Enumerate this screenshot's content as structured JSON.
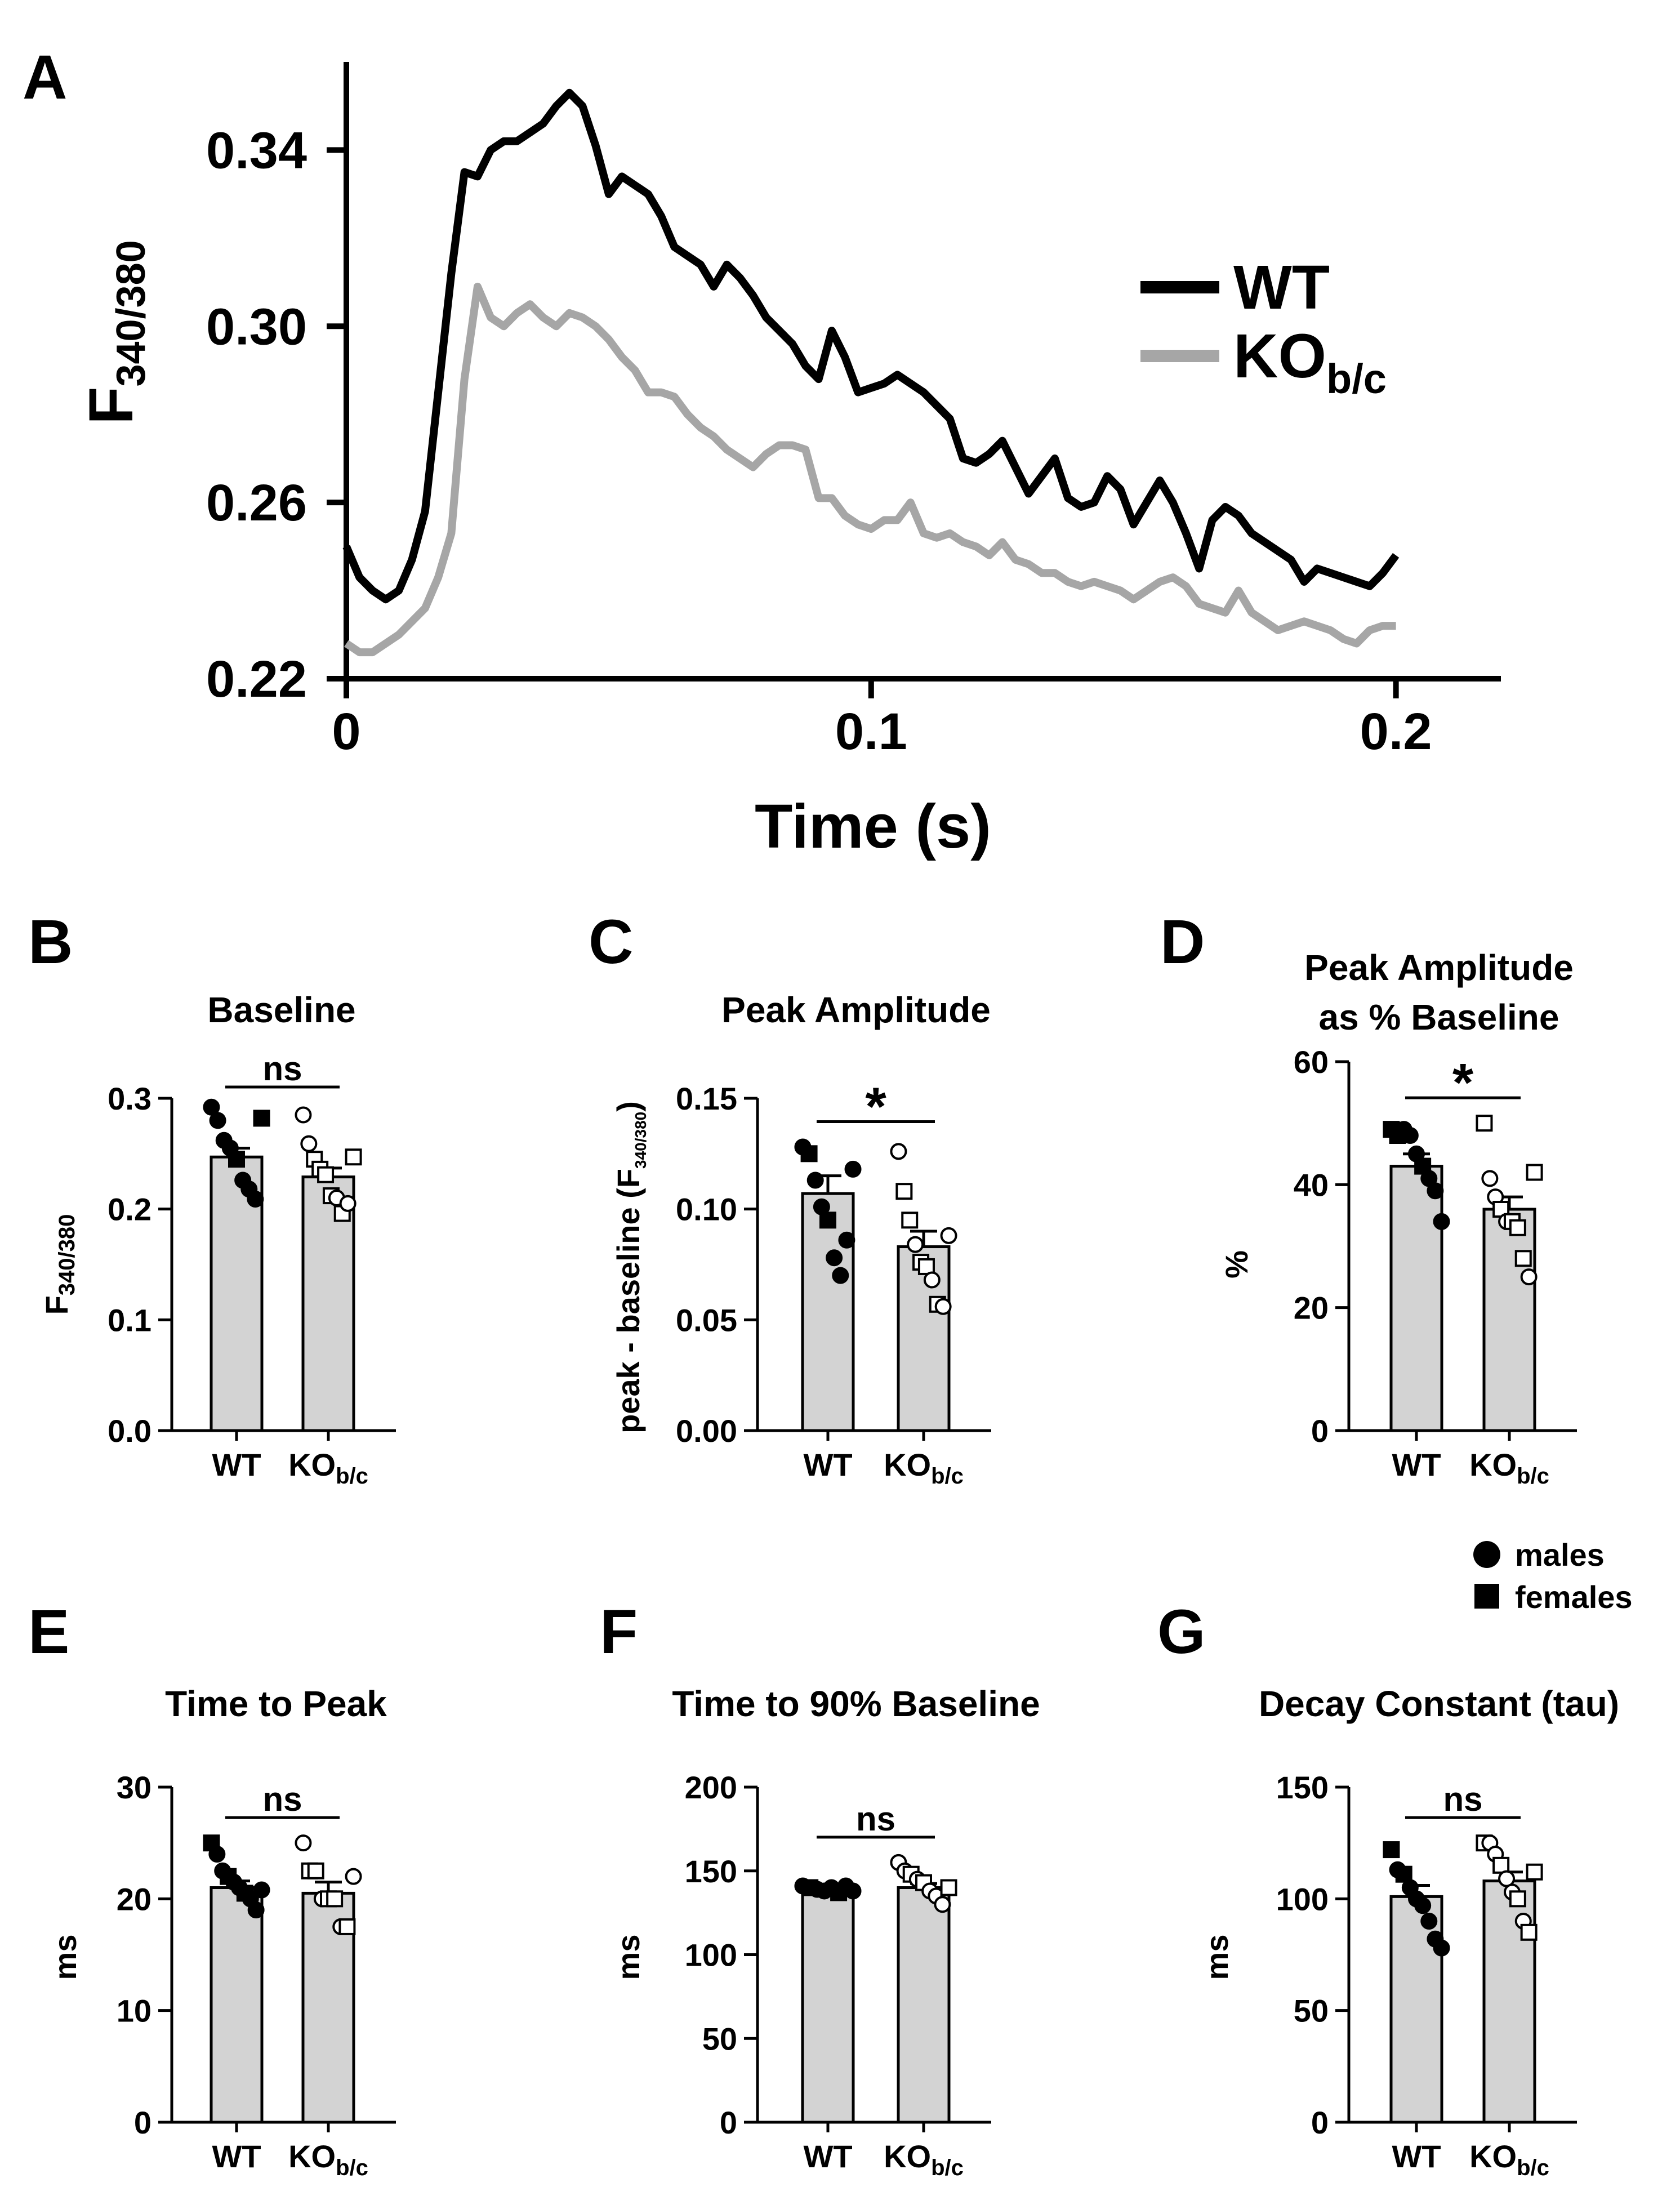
{
  "colors": {
    "wt": "#000000",
    "ko": "#a6a6a6",
    "bar_fill": "#d3d3d3"
  },
  "legend": {
    "wt": "WT",
    "ko_main": "KO",
    "ko_sub": "b/c"
  },
  "sex_legend": {
    "males": "males",
    "females": "females"
  },
  "chart_data": [
    {
      "panel": "A",
      "type": "line",
      "title": "",
      "xlabel": "Time (s)",
      "ylabel_main": "F",
      "ylabel_sub": "340/380",
      "xlim": [
        0,
        0.22
      ],
      "ylim": [
        0.22,
        0.36
      ],
      "xticks": [
        0,
        0.1,
        0.2
      ],
      "xtick_labels": [
        "0",
        "0.1",
        "0.2"
      ],
      "yticks": [
        0.22,
        0.26,
        0.3,
        0.34
      ],
      "ytick_labels": [
        "0.22",
        "0.26",
        "0.30",
        "0.34"
      ],
      "x": [
        0,
        0.0025,
        0.005,
        0.0075,
        0.01,
        0.0125,
        0.015,
        0.0175,
        0.02,
        0.0225,
        0.025,
        0.0275,
        0.03,
        0.0325,
        0.035,
        0.0375,
        0.04,
        0.0425,
        0.045,
        0.0475,
        0.05,
        0.0525,
        0.055,
        0.0575,
        0.06,
        0.0625,
        0.065,
        0.0675,
        0.07,
        0.0725,
        0.075,
        0.0775,
        0.08,
        0.0825,
        0.085,
        0.0875,
        0.09,
        0.0925,
        0.095,
        0.0975,
        0.1,
        0.1025,
        0.105,
        0.1075,
        0.11,
        0.1125,
        0.115,
        0.1175,
        0.12,
        0.1225,
        0.125,
        0.1275,
        0.13,
        0.1325,
        0.135,
        0.1375,
        0.14,
        0.1425,
        0.145,
        0.1475,
        0.15,
        0.1525,
        0.155,
        0.1575,
        0.16,
        0.1625,
        0.165,
        0.1675,
        0.17,
        0.1725,
        0.175,
        0.1775,
        0.18,
        0.1825,
        0.185,
        0.1875,
        0.19,
        0.1925,
        0.195,
        0.1975,
        0.2
      ],
      "series": [
        {
          "name": "WT",
          "values": [
            0.25,
            0.243,
            0.24,
            0.238,
            0.24,
            0.247,
            0.258,
            0.285,
            0.312,
            0.335,
            0.334,
            0.34,
            0.342,
            0.342,
            0.344,
            0.346,
            0.35,
            0.353,
            0.35,
            0.341,
            0.33,
            0.334,
            0.332,
            0.33,
            0.325,
            0.318,
            0.316,
            0.314,
            0.309,
            0.314,
            0.311,
            0.307,
            0.302,
            0.299,
            0.296,
            0.291,
            0.288,
            0.299,
            0.293,
            0.285,
            0.286,
            0.287,
            0.289,
            0.287,
            0.285,
            0.282,
            0.279,
            0.27,
            0.269,
            0.271,
            0.274,
            0.268,
            0.262,
            0.266,
            0.27,
            0.261,
            0.259,
            0.26,
            0.266,
            0.263,
            0.255,
            0.26,
            0.265,
            0.26,
            0.253,
            0.245,
            0.256,
            0.259,
            0.257,
            0.253,
            0.251,
            0.249,
            0.247,
            0.242,
            0.245,
            0.244,
            0.243,
            0.242,
            0.241,
            0.244,
            0.248
          ],
          "color": "#000000"
        },
        {
          "name": "KO b/c",
          "values": [
            0.228,
            0.226,
            0.226,
            0.228,
            0.23,
            0.233,
            0.236,
            0.243,
            0.253,
            0.288,
            0.309,
            0.302,
            0.3,
            0.303,
            0.305,
            0.302,
            0.3,
            0.303,
            0.302,
            0.3,
            0.297,
            0.293,
            0.29,
            0.285,
            0.285,
            0.284,
            0.28,
            0.277,
            0.275,
            0.272,
            0.27,
            0.268,
            0.271,
            0.273,
            0.273,
            0.272,
            0.261,
            0.261,
            0.257,
            0.255,
            0.254,
            0.256,
            0.256,
            0.26,
            0.253,
            0.252,
            0.253,
            0.251,
            0.25,
            0.248,
            0.251,
            0.247,
            0.246,
            0.244,
            0.244,
            0.242,
            0.241,
            0.242,
            0.241,
            0.24,
            0.238,
            0.24,
            0.242,
            0.243,
            0.241,
            0.237,
            0.236,
            0.235,
            0.24,
            0.235,
            0.233,
            0.231,
            0.232,
            0.233,
            0.232,
            0.231,
            0.229,
            0.228,
            0.231,
            0.232,
            0.232
          ],
          "color": "#a6a6a6"
        }
      ]
    },
    {
      "panel": "B",
      "type": "bar",
      "title": "Baseline",
      "ylabel": "F",
      "ylabel_sub": "340/380",
      "categories": [
        "WT",
        "KO"
      ],
      "category_subs": [
        "",
        "b/c"
      ],
      "ylim": [
        0,
        0.3
      ],
      "yticks": [
        0,
        0.1,
        0.2,
        0.3
      ],
      "ytick_labels": [
        "0.0",
        "0.1",
        "0.2",
        "0.3"
      ],
      "means": [
        0.247,
        0.229
      ],
      "sem": [
        0.008,
        0.008
      ],
      "significance": "ns",
      "points": [
        [
          {
            "v": 0.292,
            "sex": "m"
          },
          {
            "v": 0.28,
            "sex": "m"
          },
          {
            "v": 0.262,
            "sex": "m"
          },
          {
            "v": 0.255,
            "sex": "m"
          },
          {
            "v": 0.245,
            "sex": "f"
          },
          {
            "v": 0.226,
            "sex": "m"
          },
          {
            "v": 0.218,
            "sex": "m"
          },
          {
            "v": 0.209,
            "sex": "m"
          },
          {
            "v": 0.282,
            "sex": "f"
          }
        ],
        [
          {
            "v": 0.285,
            "sex": "m"
          },
          {
            "v": 0.259,
            "sex": "m"
          },
          {
            "v": 0.245,
            "sex": "f"
          },
          {
            "v": 0.236,
            "sex": "f"
          },
          {
            "v": 0.231,
            "sex": "f"
          },
          {
            "v": 0.212,
            "sex": "f"
          },
          {
            "v": 0.21,
            "sex": "m"
          },
          {
            "v": 0.196,
            "sex": "f"
          },
          {
            "v": 0.205,
            "sex": "m"
          },
          {
            "v": 0.247,
            "sex": "f"
          }
        ]
      ]
    },
    {
      "panel": "C",
      "type": "bar",
      "title": "Peak Amplitude",
      "ylabel": "peak - baseline (F",
      "ylabel_sub": "340/380",
      "ylabel_tail": ")",
      "categories": [
        "WT",
        "KO"
      ],
      "category_subs": [
        "",
        "b/c"
      ],
      "ylim": [
        0,
        0.15
      ],
      "yticks": [
        0,
        0.05,
        0.1,
        0.15
      ],
      "ytick_labels": [
        "0.00",
        "0.05",
        "0.10",
        "0.15"
      ],
      "means": [
        0.107,
        0.083
      ],
      "sem": [
        0.008,
        0.007
      ],
      "significance": "*",
      "points": [
        [
          {
            "v": 0.128,
            "sex": "m"
          },
          {
            "v": 0.125,
            "sex": "f"
          },
          {
            "v": 0.113,
            "sex": "m"
          },
          {
            "v": 0.101,
            "sex": "m"
          },
          {
            "v": 0.095,
            "sex": "f"
          },
          {
            "v": 0.078,
            "sex": "m"
          },
          {
            "v": 0.07,
            "sex": "m"
          },
          {
            "v": 0.086,
            "sex": "m"
          },
          {
            "v": 0.118,
            "sex": "m"
          }
        ],
        [
          {
            "v": 0.126,
            "sex": "m"
          },
          {
            "v": 0.108,
            "sex": "f"
          },
          {
            "v": 0.095,
            "sex": "f"
          },
          {
            "v": 0.084,
            "sex": "m"
          },
          {
            "v": 0.076,
            "sex": "f"
          },
          {
            "v": 0.074,
            "sex": "f"
          },
          {
            "v": 0.068,
            "sex": "m"
          },
          {
            "v": 0.057,
            "sex": "f"
          },
          {
            "v": 0.056,
            "sex": "m"
          },
          {
            "v": 0.088,
            "sex": "m"
          }
        ]
      ]
    },
    {
      "panel": "D",
      "type": "bar",
      "title_lines": [
        "Peak Amplitude",
        "as % Baseline"
      ],
      "ylabel": "%",
      "categories": [
        "WT",
        "KO"
      ],
      "category_subs": [
        "",
        "b/c"
      ],
      "ylim": [
        0,
        60
      ],
      "yticks": [
        0,
        20,
        40,
        60
      ],
      "ytick_labels": [
        "0",
        "20",
        "40",
        "60"
      ],
      "means": [
        43,
        36
      ],
      "sem": [
        2.0,
        2.0
      ],
      "significance": "*",
      "points": [
        [
          {
            "v": 49,
            "sex": "f"
          },
          {
            "v": 48,
            "sex": "f"
          },
          {
            "v": 49,
            "sex": "m"
          },
          {
            "v": 48,
            "sex": "m"
          },
          {
            "v": 45,
            "sex": "m"
          },
          {
            "v": 43,
            "sex": "f"
          },
          {
            "v": 41,
            "sex": "m"
          },
          {
            "v": 39,
            "sex": "m"
          },
          {
            "v": 34,
            "sex": "m"
          }
        ],
        [
          {
            "v": 50,
            "sex": "f"
          },
          {
            "v": 41,
            "sex": "m"
          },
          {
            "v": 38,
            "sex": "m"
          },
          {
            "v": 36,
            "sex": "f"
          },
          {
            "v": 34,
            "sex": "m"
          },
          {
            "v": 34,
            "sex": "f"
          },
          {
            "v": 33,
            "sex": "f"
          },
          {
            "v": 28,
            "sex": "f"
          },
          {
            "v": 25,
            "sex": "m"
          },
          {
            "v": 42,
            "sex": "f"
          }
        ]
      ]
    },
    {
      "panel": "E",
      "type": "bar",
      "title": "Time to Peak",
      "ylabel": "ms",
      "categories": [
        "WT",
        "KO"
      ],
      "category_subs": [
        "",
        "b/c"
      ],
      "ylim": [
        0,
        30
      ],
      "yticks": [
        0,
        10,
        20,
        30
      ],
      "ytick_labels": [
        "0",
        "10",
        "20",
        "30"
      ],
      "means": [
        21.0,
        20.5
      ],
      "sem": [
        0.6,
        1.0
      ],
      "significance": "ns",
      "points": [
        [
          {
            "v": 25,
            "sex": "f"
          },
          {
            "v": 24,
            "sex": "m"
          },
          {
            "v": 22.5,
            "sex": "m"
          },
          {
            "v": 22,
            "sex": "f"
          },
          {
            "v": 21.5,
            "sex": "m"
          },
          {
            "v": 21,
            "sex": "m"
          },
          {
            "v": 20.5,
            "sex": "f"
          },
          {
            "v": 20,
            "sex": "m"
          },
          {
            "v": 19,
            "sex": "m"
          },
          {
            "v": 20.8,
            "sex": "m"
          }
        ],
        [
          {
            "v": 25,
            "sex": "m"
          },
          {
            "v": 22.5,
            "sex": "f"
          },
          {
            "v": 22.5,
            "sex": "f"
          },
          {
            "v": 20,
            "sex": "m"
          },
          {
            "v": 20,
            "sex": "f"
          },
          {
            "v": 20,
            "sex": "f"
          },
          {
            "v": 17.5,
            "sex": "m"
          },
          {
            "v": 17.5,
            "sex": "f"
          },
          {
            "v": 22,
            "sex": "m"
          }
        ]
      ]
    },
    {
      "panel": "F",
      "type": "bar",
      "title": "Time to 90% Baseline",
      "ylabel": "ms",
      "categories": [
        "WT",
        "KO"
      ],
      "category_subs": [
        "",
        "b/c"
      ],
      "ylim": [
        0,
        200
      ],
      "yticks": [
        0,
        50,
        100,
        150,
        200
      ],
      "ytick_labels": [
        "0",
        "50",
        "100",
        "150",
        "200"
      ],
      "means": [
        139,
        140
      ],
      "sem": [
        1.0,
        2.5
      ],
      "significance": "ns",
      "points": [
        [
          {
            "v": 141,
            "sex": "m"
          },
          {
            "v": 140,
            "sex": "f"
          },
          {
            "v": 139,
            "sex": "m"
          },
          {
            "v": 138,
            "sex": "m"
          },
          {
            "v": 140,
            "sex": "m"
          },
          {
            "v": 137,
            "sex": "f"
          },
          {
            "v": 141,
            "sex": "m"
          },
          {
            "v": 138,
            "sex": "m"
          }
        ],
        [
          {
            "v": 155,
            "sex": "m"
          },
          {
            "v": 150,
            "sex": "m"
          },
          {
            "v": 148,
            "sex": "f"
          },
          {
            "v": 145,
            "sex": "m"
          },
          {
            "v": 143,
            "sex": "f"
          },
          {
            "v": 138,
            "sex": "m"
          },
          {
            "v": 135,
            "sex": "m"
          },
          {
            "v": 130,
            "sex": "m"
          },
          {
            "v": 140,
            "sex": "f"
          }
        ]
      ]
    },
    {
      "panel": "G",
      "type": "bar",
      "title": "Decay Constant (tau)",
      "ylabel": "ms",
      "categories": [
        "WT",
        "KO"
      ],
      "category_subs": [
        "",
        "b/c"
      ],
      "ylim": [
        0,
        150
      ],
      "yticks": [
        0,
        50,
        100,
        150
      ],
      "ytick_labels": [
        "0",
        "50",
        "100",
        "150"
      ],
      "means": [
        101,
        108
      ],
      "sem": [
        5,
        4
      ],
      "significance": "ns",
      "points": [
        [
          {
            "v": 122,
            "sex": "f"
          },
          {
            "v": 113,
            "sex": "m"
          },
          {
            "v": 111,
            "sex": "f"
          },
          {
            "v": 105,
            "sex": "m"
          },
          {
            "v": 100,
            "sex": "m"
          },
          {
            "v": 97,
            "sex": "m"
          },
          {
            "v": 90,
            "sex": "m"
          },
          {
            "v": 82,
            "sex": "m"
          },
          {
            "v": 78,
            "sex": "m"
          }
        ],
        [
          {
            "v": 125,
            "sex": "f"
          },
          {
            "v": 125,
            "sex": "m"
          },
          {
            "v": 120,
            "sex": "m"
          },
          {
            "v": 115,
            "sex": "f"
          },
          {
            "v": 109,
            "sex": "m"
          },
          {
            "v": 103,
            "sex": "m"
          },
          {
            "v": 100,
            "sex": "f"
          },
          {
            "v": 90,
            "sex": "m"
          },
          {
            "v": 85,
            "sex": "f"
          },
          {
            "v": 112,
            "sex": "f"
          }
        ]
      ]
    }
  ]
}
